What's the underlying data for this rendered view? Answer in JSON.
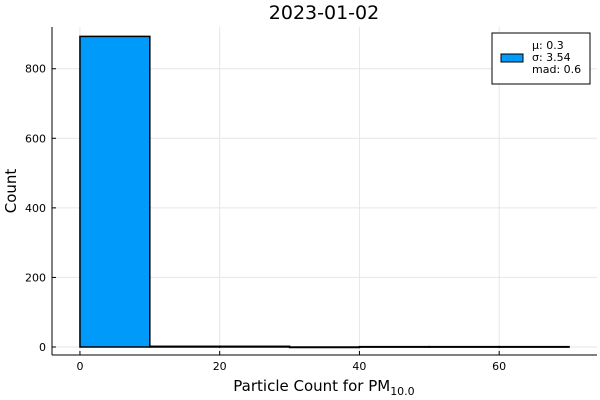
{
  "chart_data": {
    "type": "bar",
    "title": "2023-01-02",
    "xlabel": "Particle Count for PM",
    "xlabel_subscript": "10.0",
    "ylabel": "Count",
    "bins": [
      {
        "x0": 0,
        "x1": 10,
        "count": 893
      },
      {
        "x0": 10,
        "x1": 20,
        "count": 2
      },
      {
        "x0": 20,
        "x1": 30,
        "count": 2
      },
      {
        "x0": 30,
        "x1": 40,
        "count": 0
      },
      {
        "x0": 40,
        "x1": 50,
        "count": 1
      },
      {
        "x0": 50,
        "x1": 60,
        "count": 1
      },
      {
        "x0": 60,
        "x1": 70,
        "count": 1
      }
    ],
    "xlim": [
      -4,
      74
    ],
    "ylim": [
      -23,
      920
    ],
    "xticks": [
      0,
      20,
      40,
      60
    ],
    "yticks": [
      0,
      200,
      400,
      600,
      800
    ],
    "grid": true,
    "bar_color": "#009AFA",
    "legend": {
      "placement": "top-right",
      "entries": [
        "μ: 0.3",
        "σ: 3.54",
        "mad: 0.6"
      ]
    }
  }
}
